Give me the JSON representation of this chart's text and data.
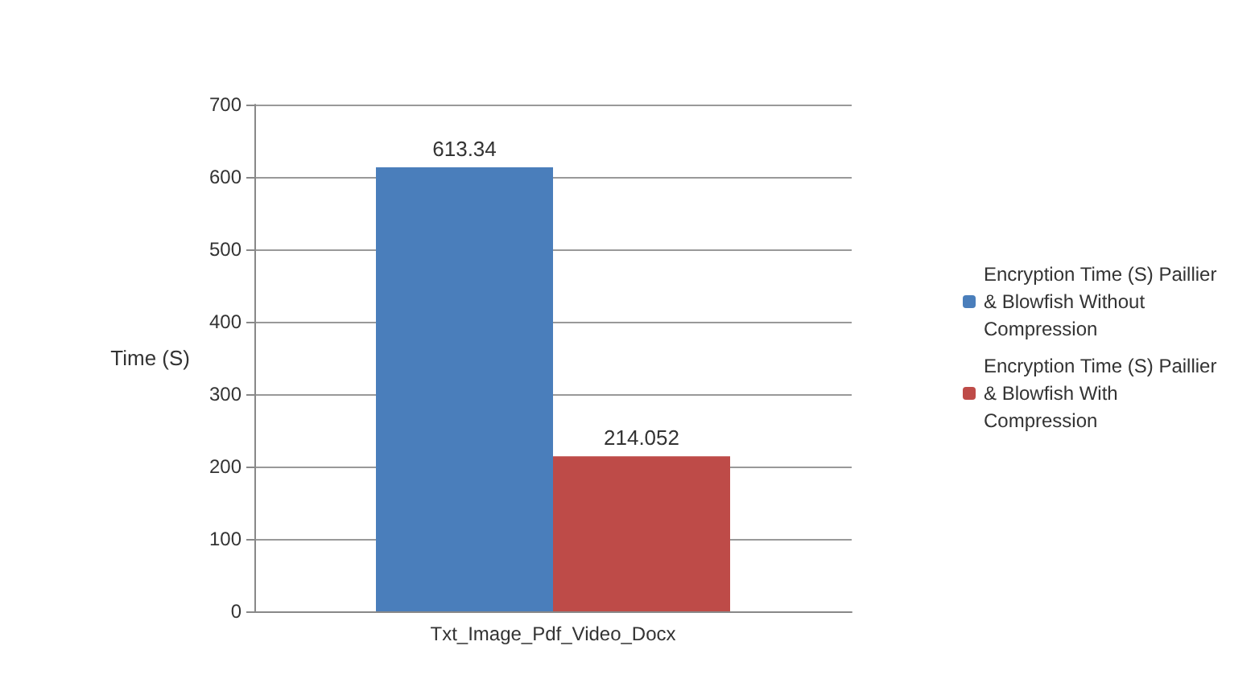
{
  "chart_data": {
    "type": "bar",
    "ylabel": "Time (S)",
    "categories": [
      "Txt_Image_Pdf_Video_Docx"
    ],
    "series": [
      {
        "name": "Encryption Time (S) Paillier & Blowfish Without Compression",
        "color": "#4a7ebb",
        "values": [
          613.34
        ]
      },
      {
        "name": "Encryption Time (S) Paillier & Blowfish With Compression",
        "color": "#be4b48",
        "values": [
          214.052
        ]
      }
    ],
    "ylim": [
      0,
      700
    ],
    "yticks": [
      0,
      100,
      200,
      300,
      400,
      500,
      600,
      700
    ],
    "grid": "y",
    "legend": "right",
    "data_labels": true
  }
}
